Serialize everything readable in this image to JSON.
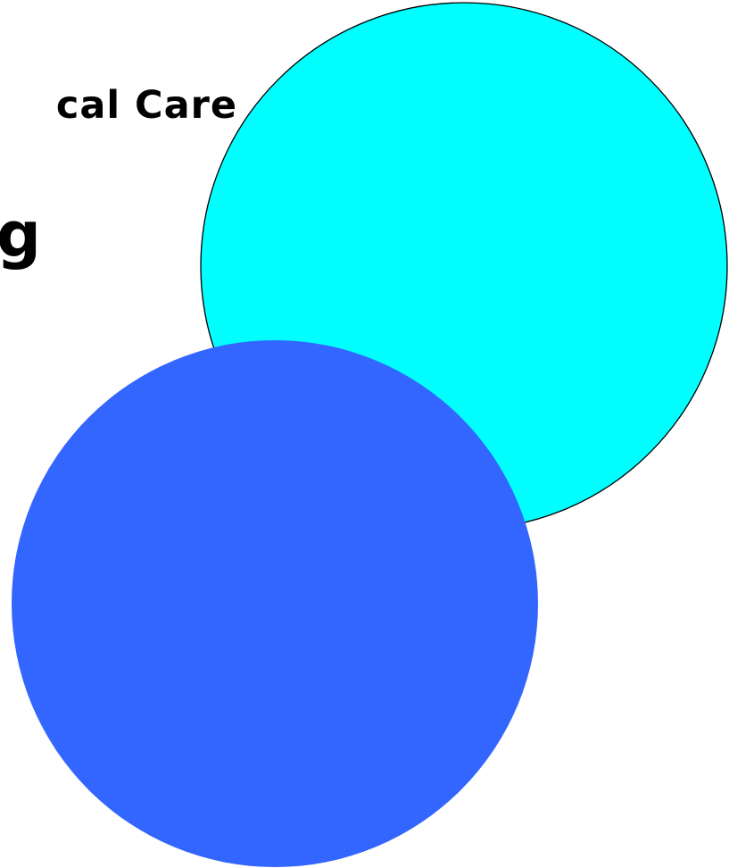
{
  "text": {
    "line_1": "cal Care",
    "line_2": "g"
  },
  "shapes": {
    "cyan_circle_fill": "#00ffff",
    "cyan_circle_stroke": "#000000",
    "blue_circle_fill": "#3366ff"
  }
}
